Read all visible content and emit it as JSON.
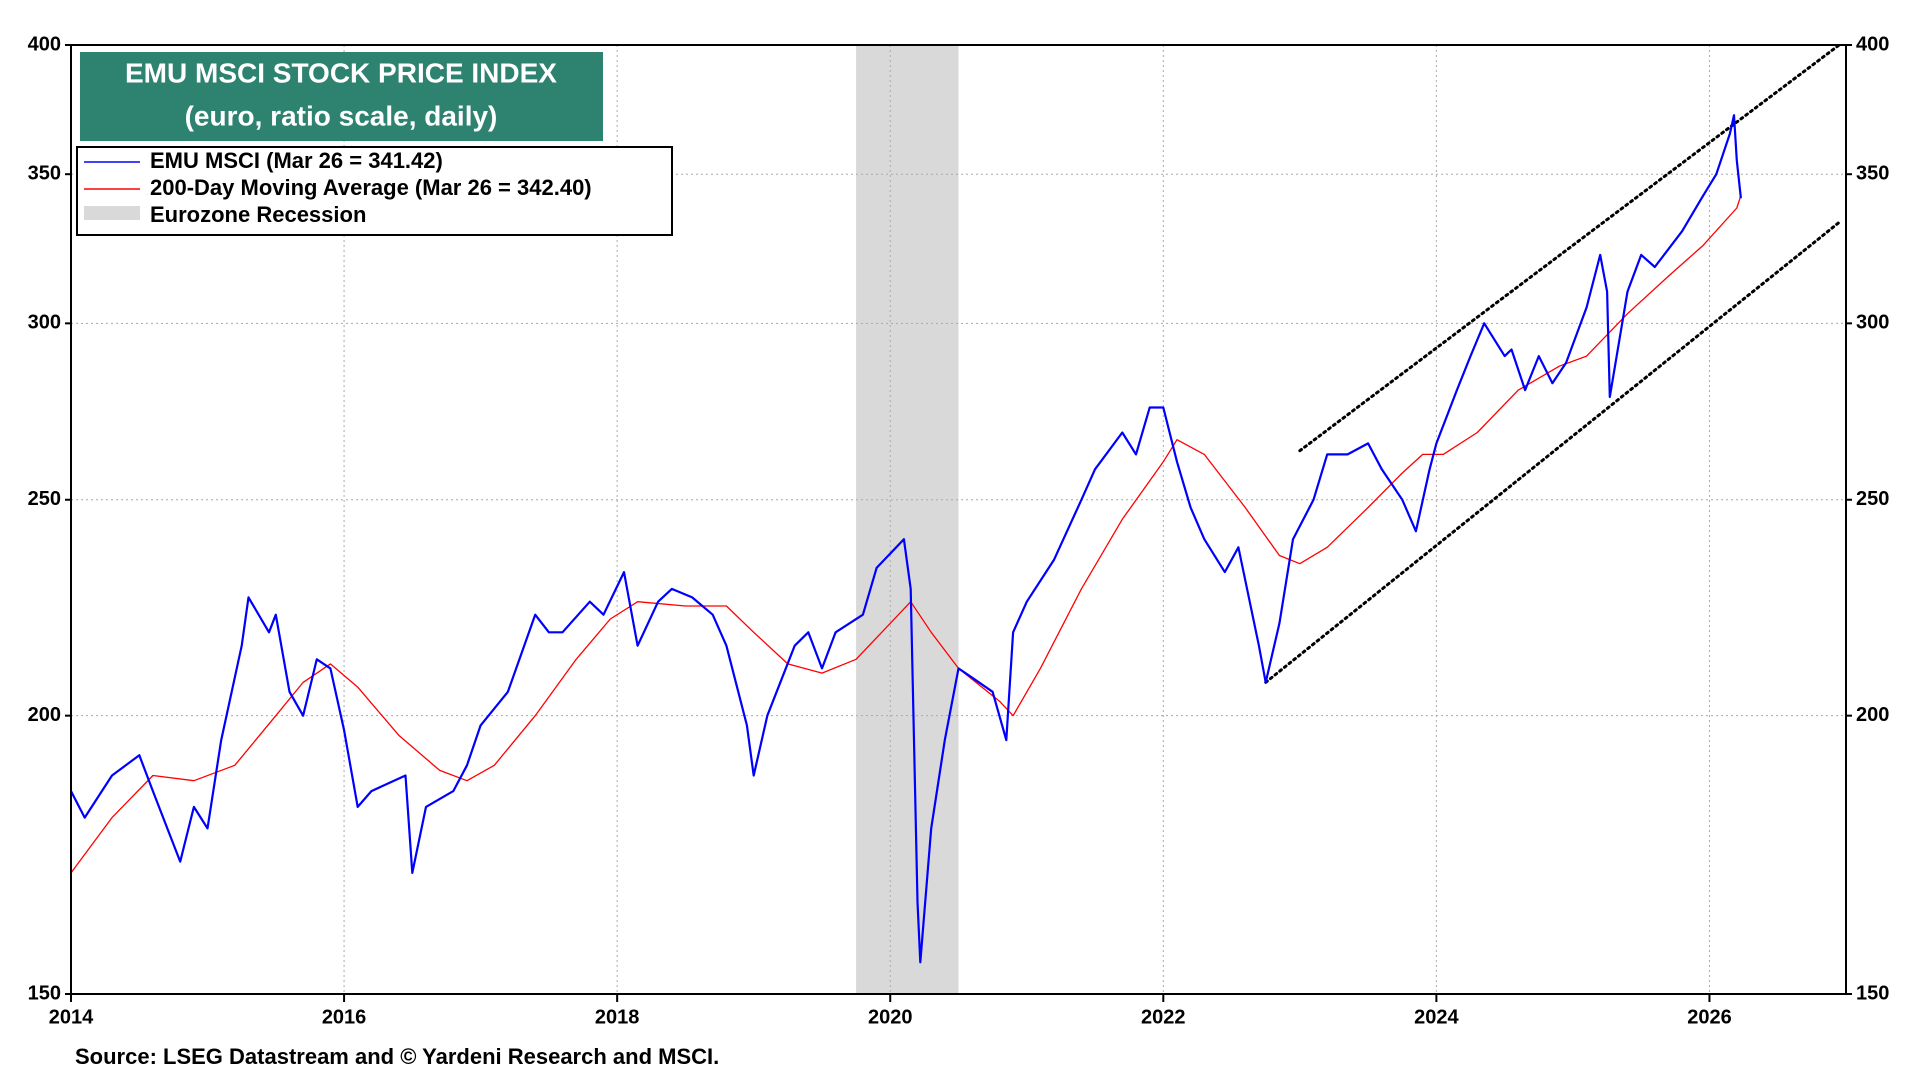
{
  "chart_data": {
    "type": "line",
    "title": "EMU MSCI STOCK PRICE INDEX",
    "subtitle": "(euro, ratio scale, daily)",
    "source": "Source: LSEG Datastream and © Yardeni Research and MSCI.",
    "log_scale": true,
    "grid": true,
    "legend": "upper left",
    "xlim": [
      2014,
      2027
    ],
    "xticks": [
      2014,
      2016,
      2018,
      2020,
      2022,
      2024,
      2026
    ],
    "ylim": [
      150,
      400
    ],
    "yticks": [
      150,
      200,
      250,
      300,
      350,
      400
    ],
    "recession": {
      "label": "Eurozone Recession",
      "color": "#d9d9d9",
      "x": [
        2019.75,
        2020.5
      ]
    },
    "trend_lines": [
      {
        "x": [
          2023.0,
          2026.95
        ],
        "values": [
          263,
          400
        ]
      },
      {
        "x": [
          2022.75,
          2026.95
        ],
        "values": [
          207,
          333
        ]
      }
    ],
    "series": [
      {
        "name": "EMU MSCI (Mar 26 = 341.42)",
        "color": "#0000ff",
        "x": [
          2014.0,
          2014.1,
          2014.3,
          2014.5,
          2014.6,
          2014.8,
          2014.9,
          2015.0,
          2015.1,
          2015.25,
          2015.3,
          2015.45,
          2015.5,
          2015.6,
          2015.7,
          2015.8,
          2015.9,
          2016.0,
          2016.1,
          2016.2,
          2016.45,
          2016.5,
          2016.6,
          2016.8,
          2016.9,
          2017.0,
          2017.2,
          2017.4,
          2017.5,
          2017.6,
          2017.8,
          2017.9,
          2018.05,
          2018.15,
          2018.3,
          2018.4,
          2018.55,
          2018.7,
          2018.8,
          2018.95,
          2019.0,
          2019.1,
          2019.3,
          2019.4,
          2019.5,
          2019.6,
          2019.8,
          2019.9,
          2020.1,
          2020.15,
          2020.2,
          2020.22,
          2020.3,
          2020.4,
          2020.5,
          2020.6,
          2020.75,
          2020.85,
          2020.9,
          2021.0,
          2021.2,
          2021.4,
          2021.5,
          2021.7,
          2021.8,
          2021.9,
          2022.0,
          2022.1,
          2022.2,
          2022.3,
          2022.45,
          2022.55,
          2022.7,
          2022.75,
          2022.85,
          2022.95,
          2023.1,
          2023.2,
          2023.35,
          2023.5,
          2023.6,
          2023.75,
          2023.85,
          2023.95,
          2024.0,
          2024.15,
          2024.25,
          2024.35,
          2024.5,
          2024.55,
          2024.65,
          2024.75,
          2024.85,
          2024.95,
          2025.1,
          2025.2,
          2025.25,
          2025.27,
          2025.4,
          2025.5,
          2025.6,
          2025.8,
          2025.95,
          2026.05,
          2026.15,
          2026.18,
          2026.2,
          2026.23
        ],
        "values": [
          185,
          180,
          188,
          192,
          185,
          172,
          182,
          178,
          195,
          215,
          226,
          218,
          222,
          205,
          200,
          212,
          210,
          197,
          182,
          185,
          188,
          170,
          182,
          185,
          190,
          198,
          205,
          222,
          218,
          218,
          225,
          222,
          232,
          215,
          225,
          228,
          226,
          222,
          215,
          198,
          188,
          200,
          215,
          218,
          210,
          218,
          222,
          233,
          240,
          228,
          165,
          155,
          178,
          195,
          210,
          208,
          205,
          195,
          218,
          225,
          235,
          250,
          258,
          268,
          262,
          275,
          275,
          260,
          248,
          240,
          232,
          238,
          215,
          207,
          220,
          240,
          250,
          262,
          262,
          265,
          258,
          250,
          242,
          258,
          265,
          280,
          290,
          300,
          290,
          292,
          280,
          290,
          282,
          288,
          305,
          322,
          310,
          278,
          310,
          322,
          318,
          330,
          342,
          350,
          365,
          372,
          355,
          341.42
        ]
      },
      {
        "name": "200-Day Moving Average (Mar 26 = 342.40)",
        "color": "#ff0000",
        "x": [
          2014.0,
          2014.3,
          2014.6,
          2014.9,
          2015.2,
          2015.5,
          2015.7,
          2015.9,
          2016.1,
          2016.4,
          2016.7,
          2016.9,
          2017.1,
          2017.4,
          2017.7,
          2017.95,
          2018.15,
          2018.5,
          2018.8,
          2019.0,
          2019.25,
          2019.5,
          2019.75,
          2020.0,
          2020.15,
          2020.3,
          2020.5,
          2020.8,
          2020.9,
          2021.1,
          2021.4,
          2021.7,
          2022.0,
          2022.1,
          2022.3,
          2022.6,
          2022.85,
          2023.0,
          2023.2,
          2023.5,
          2023.75,
          2023.9,
          2024.05,
          2024.3,
          2024.6,
          2024.9,
          2025.1,
          2025.4,
          2025.7,
          2025.95,
          2026.2,
          2026.23
        ],
        "values": [
          170,
          180,
          188,
          187,
          190,
          200,
          207,
          211,
          206,
          196,
          189,
          187,
          190,
          200,
          212,
          221,
          225,
          224,
          224,
          218,
          211,
          209,
          212,
          220,
          225,
          218,
          210,
          203,
          200,
          210,
          228,
          245,
          260,
          266,
          262,
          248,
          236,
          234,
          238,
          248,
          257,
          262,
          262,
          268,
          280,
          287,
          290,
          303,
          315,
          325,
          338,
          342.4
        ]
      }
    ]
  }
}
